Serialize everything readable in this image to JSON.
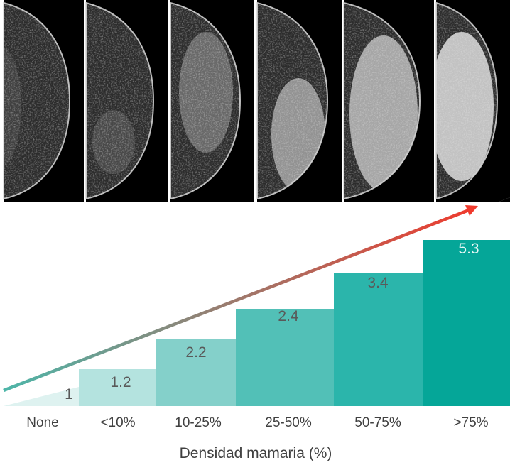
{
  "chart_data": {
    "type": "bar",
    "categories": [
      "None",
      "<10%",
      "10-25%",
      "25-50%",
      "50-75%",
      ">75%"
    ],
    "values": [
      1,
      1.2,
      2.2,
      2.4,
      3.4,
      5.3
    ],
    "value_labels": [
      "1",
      "1.2",
      "2.2",
      "2.4",
      "3.4",
      "5.3"
    ],
    "xlabel": "Densidad mamaria (%)",
    "bar_colors": [
      "#def2f0",
      "#b4e3df",
      "#84d0ca",
      "#52c0b7",
      "#2bb5ab",
      "#05a698"
    ],
    "label_colors": [
      "#595959",
      "#595959",
      "#595959",
      "#595959",
      "#595959",
      "#e6f7f5"
    ],
    "arrow_gradient": [
      "#4db6a9",
      "#f03a2d"
    ],
    "mammogram_panels": 6,
    "panel_background": "#000000",
    "tissue_highlight": "#e8e8e8"
  }
}
